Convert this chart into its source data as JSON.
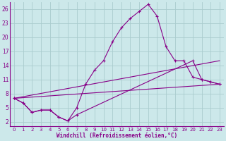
{
  "bg_color": "#cce8ea",
  "grid_color": "#aaccce",
  "line_color": "#880088",
  "xlabel": "Windchill (Refroidissement éolien,°C)",
  "xlim": [
    -0.5,
    23.5
  ],
  "ylim": [
    1,
    27.5
  ],
  "xticks": [
    0,
    1,
    2,
    3,
    4,
    5,
    6,
    7,
    8,
    9,
    10,
    11,
    12,
    13,
    14,
    15,
    16,
    17,
    18,
    19,
    20,
    21,
    22,
    23
  ],
  "yticks": [
    2,
    5,
    8,
    11,
    14,
    17,
    20,
    23,
    26
  ],
  "series": [
    {
      "x": [
        0,
        1,
        2,
        3,
        4,
        5,
        6,
        7,
        8,
        9,
        10,
        11,
        12,
        13,
        14,
        15,
        16,
        17,
        18,
        19,
        20,
        21,
        22,
        23
      ],
      "y": [
        7,
        6,
        4,
        4.5,
        4.5,
        3,
        2.2,
        5,
        10,
        13,
        15,
        19,
        22,
        24,
        25.5,
        27,
        24.5,
        18,
        15,
        15,
        11.5,
        11,
        10.5,
        10
      ],
      "marker": true
    },
    {
      "x": [
        0,
        1,
        2,
        3,
        4,
        5,
        6,
        7,
        20,
        21,
        22,
        23
      ],
      "y": [
        7,
        6,
        4,
        4.5,
        4.5,
        3,
        2.2,
        3.5,
        15,
        11,
        10.5,
        10
      ],
      "marker": true
    },
    {
      "x": [
        0,
        23
      ],
      "y": [
        7,
        15
      ],
      "marker": false
    },
    {
      "x": [
        0,
        23
      ],
      "y": [
        7,
        10
      ],
      "marker": false
    }
  ]
}
